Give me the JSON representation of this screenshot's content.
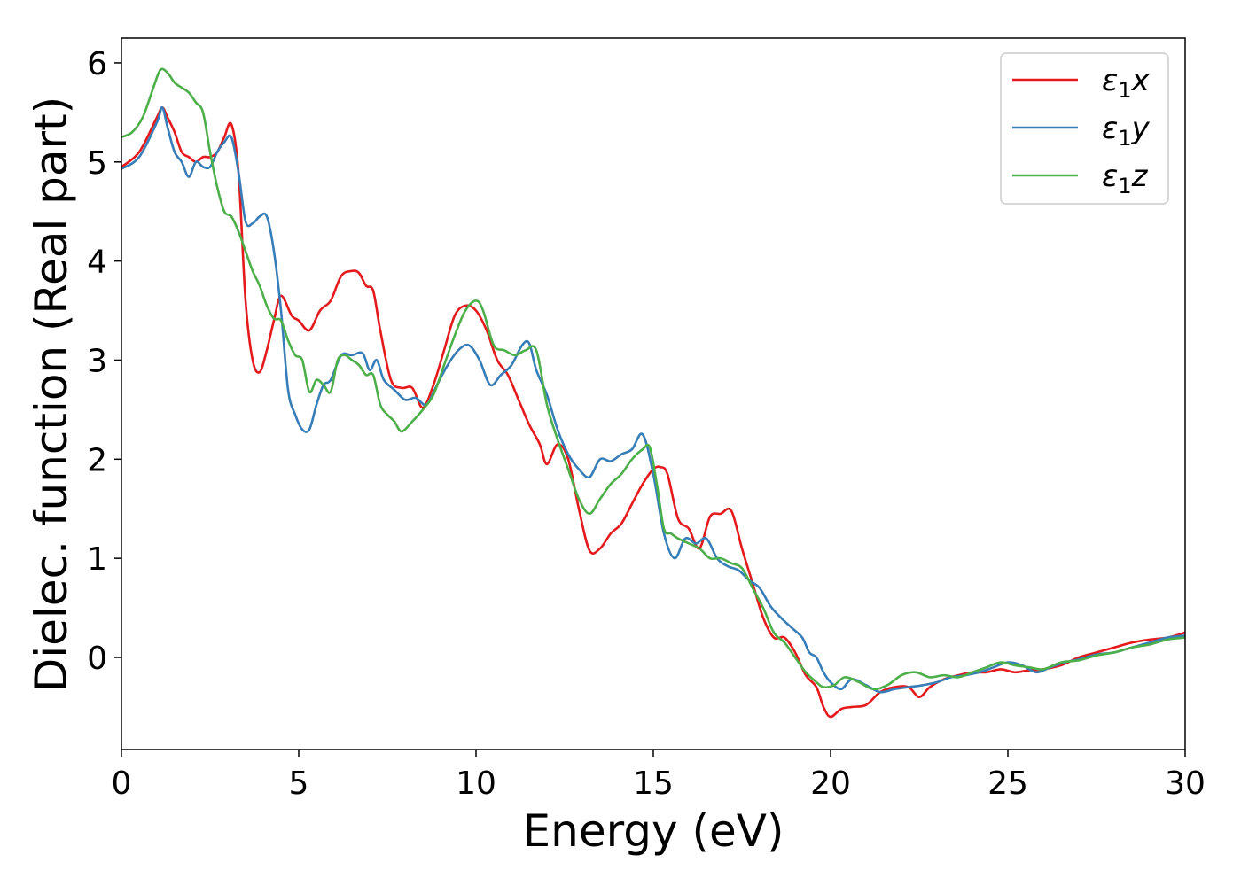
{
  "chart_data": {
    "type": "line",
    "title": "",
    "xlabel": "Energy (eV)",
    "ylabel": "Dielec. function (Real part)",
    "xlim": [
      0,
      30
    ],
    "ylim": [
      -0.93,
      6.25
    ],
    "xticks": [
      0,
      5,
      10,
      15,
      20,
      25,
      30
    ],
    "yticks": [
      0,
      1,
      2,
      3,
      4,
      5,
      6
    ],
    "grid": false,
    "legend": "top-right",
    "series": [
      {
        "name": "ε1x",
        "label_main": "ε",
        "label_sub": "1",
        "label_var": "x",
        "color": "#e41a1c",
        "x": [
          0,
          0.5,
          1.0,
          1.15,
          1.3,
          1.5,
          1.7,
          1.9,
          2.1,
          2.3,
          2.5,
          2.7,
          2.9,
          3.1,
          3.3,
          3.5,
          3.7,
          3.9,
          4.1,
          4.3,
          4.5,
          4.8,
          5.0,
          5.3,
          5.6,
          5.9,
          6.2,
          6.5,
          6.7,
          6.9,
          7.1,
          7.3,
          7.6,
          7.9,
          8.2,
          8.5,
          8.8,
          9.1,
          9.4,
          9.7,
          10.0,
          10.3,
          10.6,
          10.9,
          11.2,
          11.5,
          11.8,
          12.0,
          12.3,
          12.6,
          12.9,
          13.2,
          13.5,
          13.8,
          14.1,
          14.4,
          14.7,
          15.0,
          15.2,
          15.4,
          15.7,
          16.0,
          16.3,
          16.6,
          16.9,
          17.2,
          17.5,
          17.8,
          18.1,
          18.4,
          18.7,
          19.0,
          19.3,
          19.6,
          19.8,
          20.0,
          20.3,
          20.6,
          21.0,
          21.4,
          21.8,
          22.2,
          22.5,
          22.8,
          23.2,
          23.6,
          24.0,
          24.4,
          24.8,
          25.2,
          25.6,
          26.0,
          26.5,
          27.0,
          27.5,
          28.0,
          28.5,
          29.0,
          29.5,
          30.0
        ],
        "y": [
          4.95,
          5.1,
          5.45,
          5.55,
          5.45,
          5.3,
          5.1,
          5.05,
          5.0,
          5.05,
          5.05,
          5.1,
          5.25,
          5.38,
          4.9,
          3.6,
          3.0,
          2.88,
          3.1,
          3.4,
          3.65,
          3.45,
          3.4,
          3.3,
          3.5,
          3.6,
          3.85,
          3.9,
          3.88,
          3.75,
          3.7,
          3.3,
          2.8,
          2.72,
          2.72,
          2.52,
          2.75,
          3.1,
          3.45,
          3.55,
          3.5,
          3.3,
          3.0,
          2.85,
          2.6,
          2.35,
          2.15,
          1.95,
          2.15,
          2.0,
          1.5,
          1.08,
          1.1,
          1.25,
          1.35,
          1.55,
          1.75,
          1.9,
          1.92,
          1.85,
          1.4,
          1.3,
          1.1,
          1.42,
          1.45,
          1.48,
          1.1,
          0.75,
          0.4,
          0.2,
          0.2,
          0.05,
          -0.18,
          -0.3,
          -0.5,
          -0.6,
          -0.52,
          -0.5,
          -0.48,
          -0.35,
          -0.3,
          -0.3,
          -0.4,
          -0.3,
          -0.22,
          -0.18,
          -0.15,
          -0.15,
          -0.12,
          -0.15,
          -0.13,
          -0.12,
          -0.08,
          0.0,
          0.05,
          0.1,
          0.15,
          0.18,
          0.2,
          0.25
        ]
      },
      {
        "name": "ε1y",
        "label_main": "ε",
        "label_sub": "1",
        "label_var": "y",
        "color": "#377eb8",
        "x": [
          0,
          0.5,
          1.0,
          1.15,
          1.3,
          1.5,
          1.7,
          1.9,
          2.1,
          2.3,
          2.5,
          2.7,
          2.9,
          3.1,
          3.3,
          3.5,
          3.7,
          3.9,
          4.1,
          4.3,
          4.5,
          4.7,
          4.9,
          5.1,
          5.3,
          5.5,
          5.7,
          5.9,
          6.2,
          6.5,
          6.8,
          7.0,
          7.2,
          7.4,
          7.7,
          8.0,
          8.3,
          8.6,
          8.9,
          9.2,
          9.5,
          9.8,
          10.1,
          10.4,
          10.7,
          11.0,
          11.3,
          11.5,
          11.7,
          12.0,
          12.3,
          12.6,
          12.9,
          13.2,
          13.5,
          13.8,
          14.1,
          14.4,
          14.7,
          15.0,
          15.3,
          15.6,
          15.9,
          16.2,
          16.5,
          16.8,
          17.1,
          17.4,
          17.7,
          18.0,
          18.3,
          18.6,
          18.9,
          19.2,
          19.4,
          19.6,
          19.8,
          20.0,
          20.3,
          20.6,
          21.0,
          21.4,
          21.8,
          22.2,
          22.6,
          23.0,
          23.4,
          23.8,
          24.2,
          24.6,
          25.0,
          25.4,
          25.8,
          26.2,
          26.6,
          27.0,
          27.5,
          28.0,
          28.5,
          29.0,
          29.5,
          30.0
        ],
        "y": [
          4.93,
          5.05,
          5.4,
          5.55,
          5.35,
          5.1,
          5.0,
          4.85,
          5.0,
          4.95,
          4.95,
          5.1,
          5.2,
          5.25,
          4.9,
          4.4,
          4.38,
          4.45,
          4.45,
          4.1,
          3.5,
          2.7,
          2.45,
          2.3,
          2.3,
          2.55,
          2.75,
          2.8,
          3.05,
          3.05,
          3.07,
          2.9,
          3.0,
          2.8,
          2.7,
          2.6,
          2.62,
          2.55,
          2.75,
          2.95,
          3.1,
          3.15,
          3.0,
          2.75,
          2.85,
          2.95,
          3.15,
          3.17,
          2.9,
          2.65,
          2.3,
          2.05,
          1.9,
          1.82,
          2.0,
          1.98,
          2.05,
          2.1,
          2.25,
          1.85,
          1.25,
          1.0,
          1.2,
          1.15,
          1.2,
          1.0,
          0.92,
          0.88,
          0.78,
          0.7,
          0.52,
          0.4,
          0.3,
          0.2,
          0.05,
          0.0,
          -0.15,
          -0.25,
          -0.32,
          -0.22,
          -0.28,
          -0.35,
          -0.32,
          -0.3,
          -0.28,
          -0.25,
          -0.2,
          -0.18,
          -0.15,
          -0.1,
          -0.05,
          -0.08,
          -0.15,
          -0.1,
          -0.05,
          -0.02,
          0.03,
          0.05,
          0.1,
          0.15,
          0.2,
          0.22
        ]
      },
      {
        "name": "ε1z",
        "label_main": "ε",
        "label_sub": "1",
        "label_var": "z",
        "color": "#4daf4a",
        "x": [
          0,
          0.3,
          0.6,
          0.9,
          1.1,
          1.3,
          1.5,
          1.7,
          1.9,
          2.1,
          2.3,
          2.5,
          2.7,
          2.9,
          3.1,
          3.3,
          3.5,
          3.7,
          3.9,
          4.1,
          4.3,
          4.5,
          4.7,
          4.9,
          5.1,
          5.3,
          5.5,
          5.7,
          5.9,
          6.1,
          6.3,
          6.5,
          6.7,
          6.9,
          7.1,
          7.3,
          7.5,
          7.7,
          7.9,
          8.2,
          8.5,
          8.8,
          9.1,
          9.4,
          9.7,
          10.0,
          10.2,
          10.5,
          10.8,
          11.1,
          11.4,
          11.7,
          12.0,
          12.3,
          12.6,
          12.9,
          13.2,
          13.5,
          13.8,
          14.1,
          14.4,
          14.7,
          14.9,
          15.1,
          15.3,
          15.5,
          15.7,
          16.0,
          16.3,
          16.6,
          16.9,
          17.2,
          17.5,
          17.8,
          18.1,
          18.4,
          18.7,
          19.0,
          19.3,
          19.6,
          19.8,
          20.1,
          20.4,
          20.8,
          21.2,
          21.6,
          22.0,
          22.4,
          22.8,
          23.2,
          23.6,
          24.0,
          24.4,
          24.8,
          25.2,
          25.6,
          26.0,
          26.5,
          27.0,
          27.5,
          28.0,
          28.5,
          29.0,
          29.5,
          30.0
        ],
        "y": [
          5.25,
          5.3,
          5.45,
          5.75,
          5.93,
          5.9,
          5.8,
          5.75,
          5.7,
          5.6,
          5.5,
          5.1,
          4.75,
          4.5,
          4.45,
          4.3,
          4.1,
          3.9,
          3.75,
          3.55,
          3.42,
          3.4,
          3.2,
          3.05,
          3.0,
          2.68,
          2.8,
          2.75,
          2.68,
          3.0,
          3.05,
          3.0,
          2.95,
          2.85,
          2.85,
          2.55,
          2.45,
          2.38,
          2.28,
          2.38,
          2.5,
          2.65,
          2.95,
          3.25,
          3.5,
          3.6,
          3.5,
          3.15,
          3.1,
          3.05,
          3.1,
          3.1,
          2.55,
          2.2,
          1.9,
          1.6,
          1.45,
          1.6,
          1.75,
          1.85,
          2.0,
          2.1,
          2.12,
          1.75,
          1.3,
          1.25,
          1.2,
          1.15,
          1.1,
          1.0,
          1.0,
          0.95,
          0.9,
          0.7,
          0.5,
          0.25,
          0.15,
          0.0,
          -0.15,
          -0.25,
          -0.3,
          -0.28,
          -0.2,
          -0.25,
          -0.32,
          -0.28,
          -0.18,
          -0.15,
          -0.2,
          -0.18,
          -0.2,
          -0.15,
          -0.1,
          -0.05,
          -0.08,
          -0.1,
          -0.12,
          -0.05,
          -0.03,
          0.02,
          0.05,
          0.1,
          0.13,
          0.18,
          0.2
        ]
      }
    ]
  }
}
